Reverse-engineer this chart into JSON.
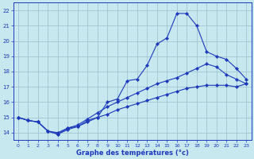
{
  "xlabel": "Graphe des températures (°c)",
  "x_ticks": [
    0,
    1,
    2,
    3,
    4,
    5,
    6,
    7,
    8,
    9,
    10,
    11,
    12,
    13,
    14,
    15,
    16,
    17,
    18,
    19,
    20,
    21,
    22,
    23
  ],
  "ylim": [
    13.5,
    22.5
  ],
  "xlim": [
    -0.5,
    23.5
  ],
  "yticks": [
    14,
    15,
    16,
    17,
    18,
    19,
    20,
    21,
    22
  ],
  "line1_x": [
    0,
    1,
    2,
    3,
    4,
    5,
    6,
    7,
    8,
    9,
    10,
    11,
    12,
    13,
    14,
    15,
    16,
    17,
    18,
    19,
    20,
    21,
    22,
    23
  ],
  "line1_y": [
    15.0,
    14.8,
    14.7,
    14.1,
    14.0,
    14.3,
    14.4,
    14.8,
    15.0,
    16.0,
    16.2,
    17.4,
    17.5,
    18.4,
    19.8,
    20.2,
    21.8,
    21.8,
    21.0,
    19.3,
    19.0,
    18.8,
    18.2,
    17.5
  ],
  "line2_x": [
    0,
    1,
    2,
    3,
    4,
    5,
    6,
    7,
    8,
    9,
    10,
    11,
    12,
    13,
    14,
    15,
    16,
    17,
    18,
    19,
    20,
    21,
    22,
    23
  ],
  "line2_y": [
    15.0,
    14.8,
    14.7,
    14.1,
    13.9,
    14.3,
    14.5,
    14.9,
    15.3,
    15.7,
    16.0,
    16.3,
    16.6,
    16.9,
    17.2,
    17.4,
    17.6,
    17.9,
    18.2,
    18.5,
    18.3,
    17.8,
    17.5,
    17.2
  ],
  "line3_x": [
    0,
    1,
    2,
    3,
    4,
    5,
    6,
    7,
    8,
    9,
    10,
    11,
    12,
    13,
    14,
    15,
    16,
    17,
    18,
    19,
    20,
    21,
    22,
    23
  ],
  "line3_y": [
    15.0,
    14.8,
    14.7,
    14.1,
    13.9,
    14.2,
    14.4,
    14.7,
    15.0,
    15.2,
    15.5,
    15.7,
    15.9,
    16.1,
    16.3,
    16.5,
    16.7,
    16.9,
    17.0,
    17.1,
    17.1,
    17.1,
    17.0,
    17.2
  ],
  "line_color": "#1c39bb",
  "bg_color": "#c8e8f0",
  "grid_color": "#9bbccc",
  "axis_color": "#1c39bb",
  "tick_color": "#1c39bb",
  "label_color": "#1c39bb"
}
